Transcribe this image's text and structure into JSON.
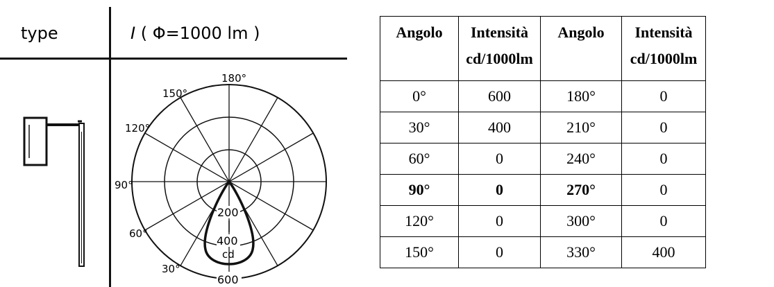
{
  "figure": {
    "type_label": "type",
    "flux_symbol": "I",
    "flux_label": "( Φ=1000 lm )",
    "angle_labels": [
      "180°",
      "150°",
      "120°",
      "90°",
      "60°",
      "30°"
    ],
    "scale_labels": [
      "200",
      "400",
      "600"
    ],
    "unit_label": "cd"
  },
  "table": {
    "headers": [
      [
        "Angolo"
      ],
      [
        "Intensità",
        "cd/1000lm"
      ],
      [
        "Angolo"
      ],
      [
        "Intensità",
        "cd/1000lm"
      ]
    ],
    "rows": [
      [
        "0°",
        "600",
        "180°",
        "0"
      ],
      [
        "30°",
        "400",
        "210°",
        "0"
      ],
      [
        "60°",
        "0",
        "240°",
        "0"
      ],
      [
        "90°",
        "0",
        "270°",
        "0"
      ],
      [
        "120°",
        "0",
        "300°",
        "0"
      ],
      [
        "150°",
        "0",
        "330°",
        "400"
      ]
    ]
  }
}
